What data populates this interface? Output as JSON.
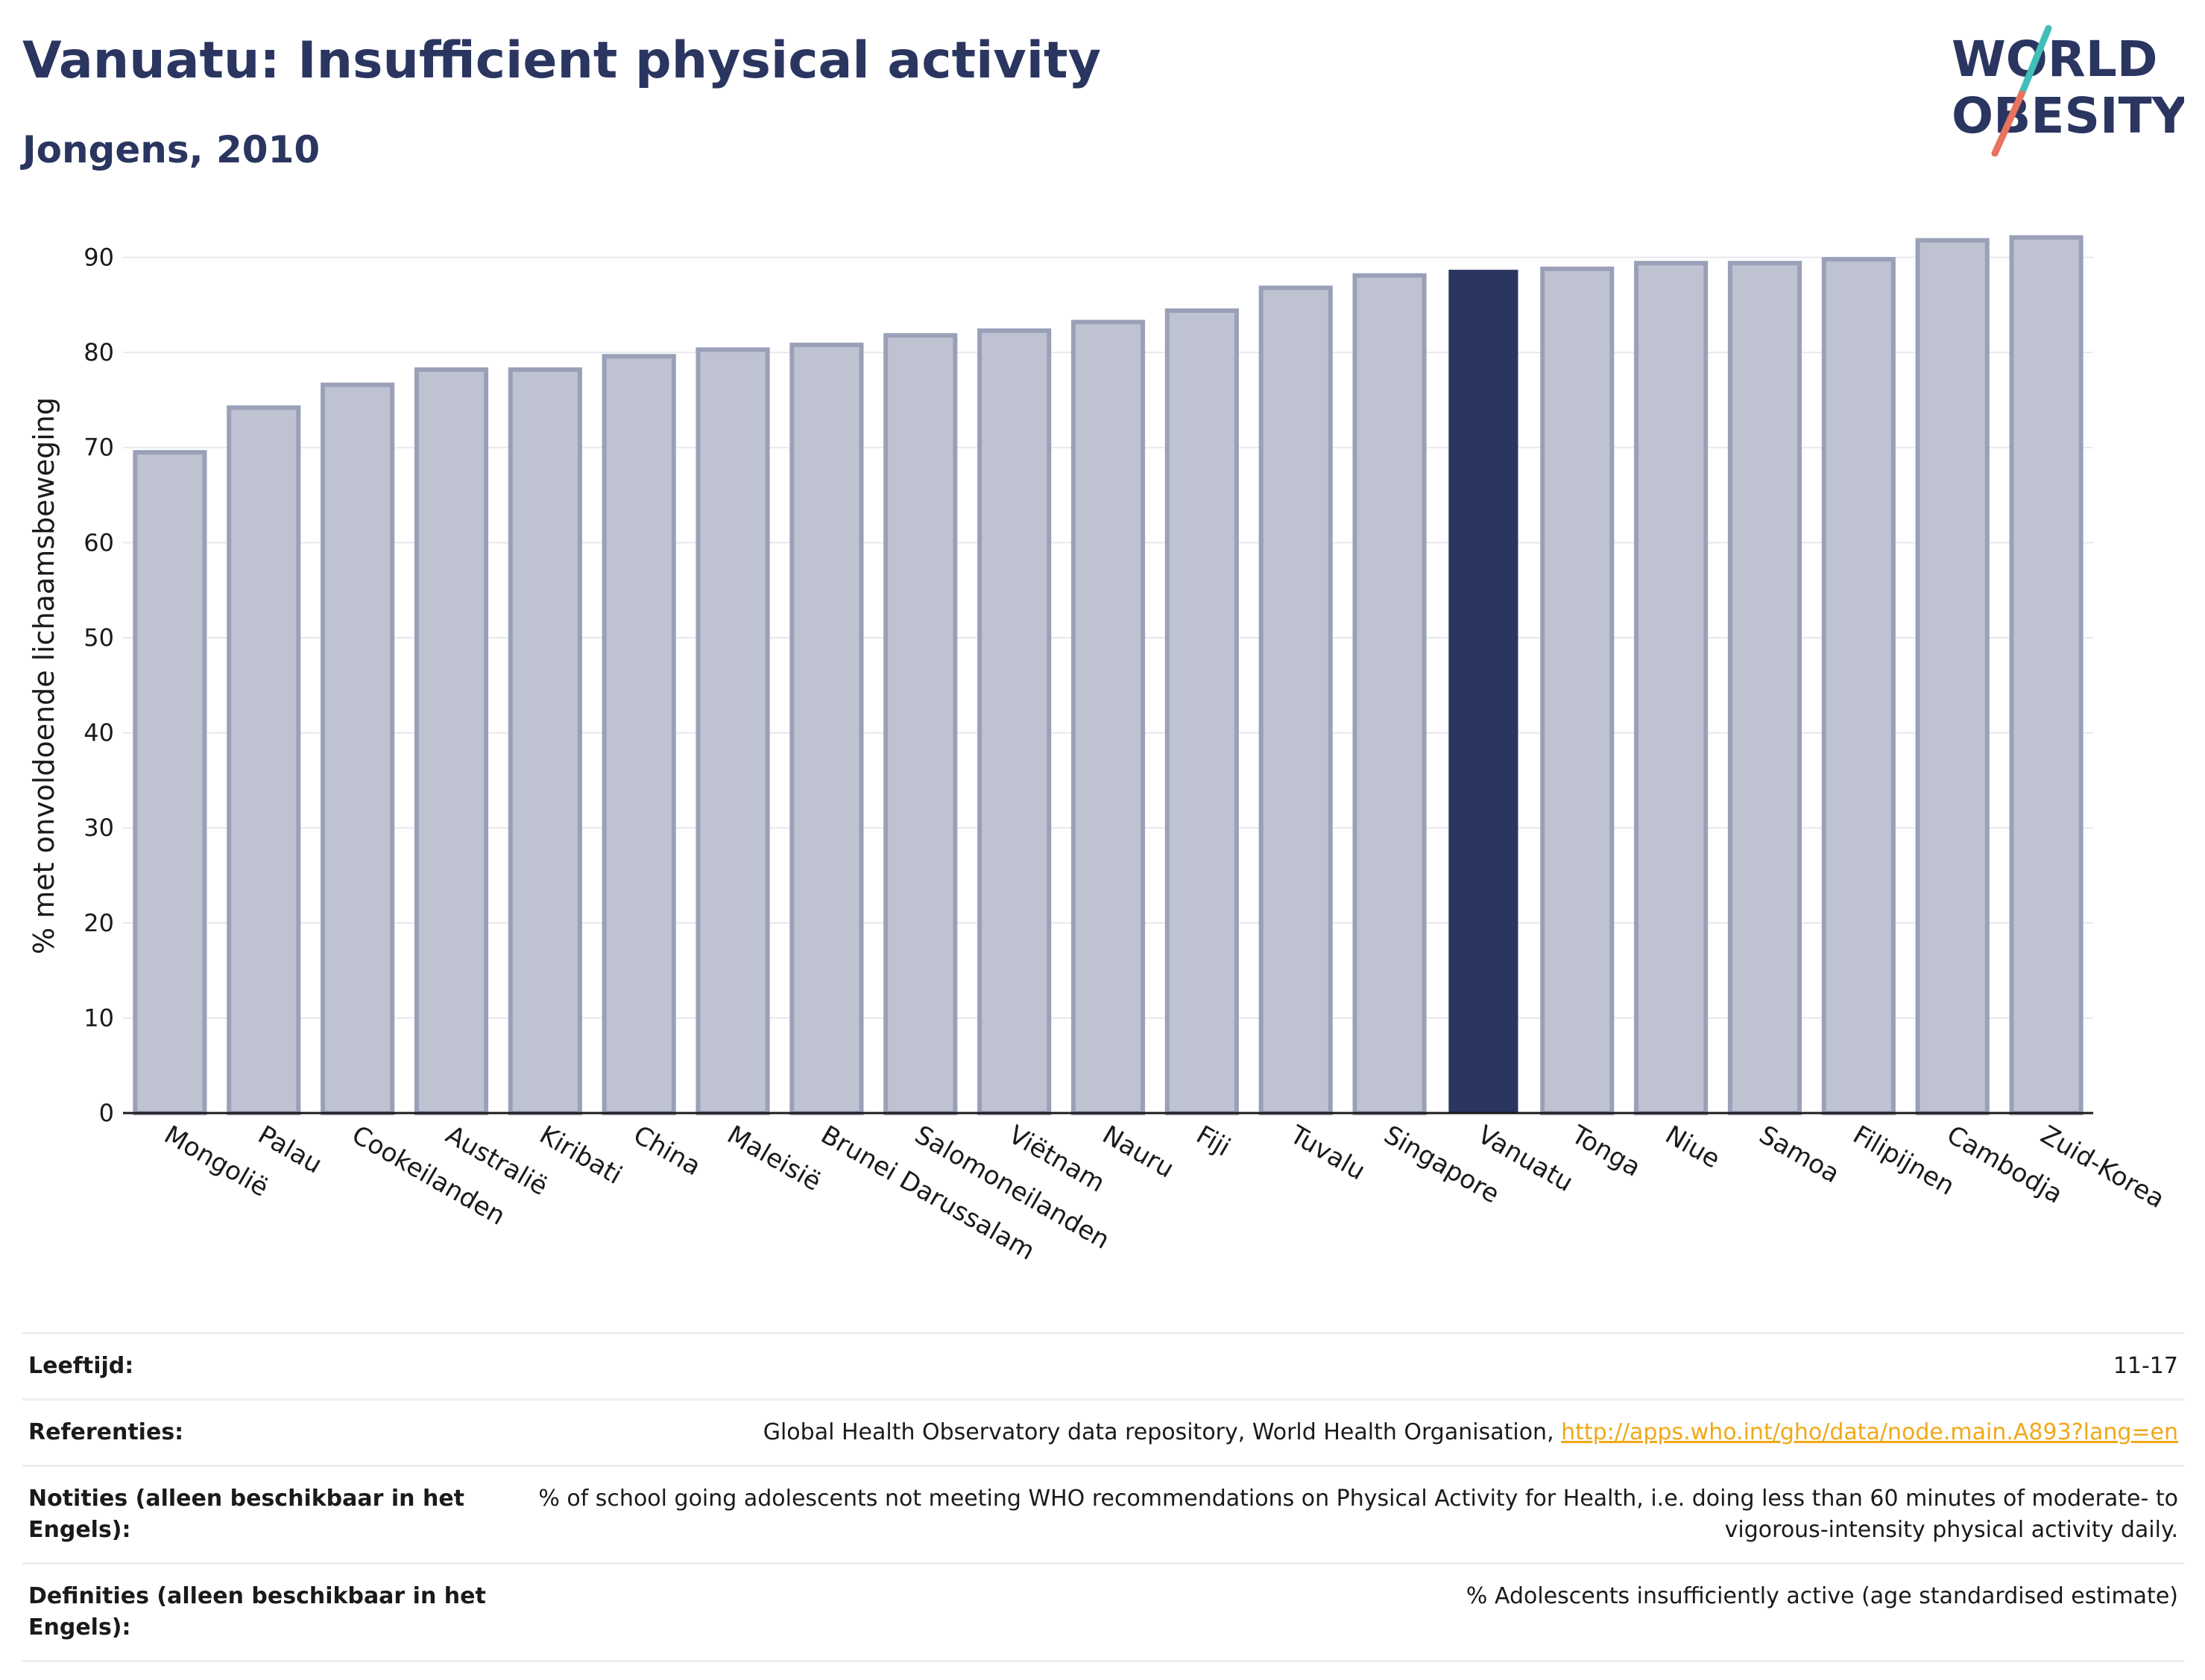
{
  "header": {
    "title": "Vanuatu: Insufficient physical activity",
    "subtitle": "Jongens, 2010"
  },
  "logo": {
    "line1": "WORLD",
    "line2": "OBESITY",
    "colors": {
      "text": "#2a3560",
      "slash_top": "#3fbfb8",
      "slash_bottom": "#e8735f"
    }
  },
  "chart_data": {
    "type": "bar",
    "ylabel": "% met onvoldoende lichaamsbeweging",
    "xlabel": "",
    "ylim": [
      0,
      92
    ],
    "yticks": [
      0,
      10,
      20,
      30,
      40,
      50,
      60,
      70,
      80,
      90
    ],
    "grid": true,
    "categories": [
      "Mongolië",
      "Palau",
      "Cookeilanden",
      "Australië",
      "Kiribati",
      "China",
      "Maleisië",
      "Brunei Darussalam",
      "Salomoneilanden",
      "Viëtnam",
      "Nauru",
      "Fiji",
      "Tuvalu",
      "Singapore",
      "Vanuatu",
      "Tonga",
      "Niue",
      "Samoa",
      "Filipijnen",
      "Cambodja",
      "Zuid-Korea"
    ],
    "values": [
      69.5,
      74.2,
      76.6,
      78.2,
      78.2,
      79.6,
      80.3,
      80.8,
      81.8,
      82.3,
      83.2,
      84.4,
      86.8,
      88.1,
      88.7,
      88.8,
      89.4,
      89.4,
      89.8,
      91.8,
      92.1
    ],
    "highlight": "Vanuatu",
    "colors": {
      "bar": "#bfc3d1",
      "bar_edge": "#9aa0b8",
      "highlight": "#2a3560",
      "grid": "#e8e8ee",
      "axis": "#1a1a1a"
    }
  },
  "info": {
    "rows": [
      {
        "key": "Leeftijd:",
        "value": "11-17"
      },
      {
        "key": "Referenties:",
        "value": "Global Health Observatory data repository, World Health Organisation, ",
        "link": "http://apps.who.int/gho/data/node.main.A893?lang=en"
      },
      {
        "key": "Notities (alleen beschikbaar in het Engels):",
        "value": "% of school going adolescents not meeting WHO recommendations on Physical Activity for Health, i.e. doing less than 60 minutes of moderate- to vigorous-intensity physical activity daily."
      },
      {
        "key": "Definities (alleen beschikbaar in het Engels):",
        "value": "% Adolescents insufficiently active (age standardised estimate)"
      }
    ]
  }
}
